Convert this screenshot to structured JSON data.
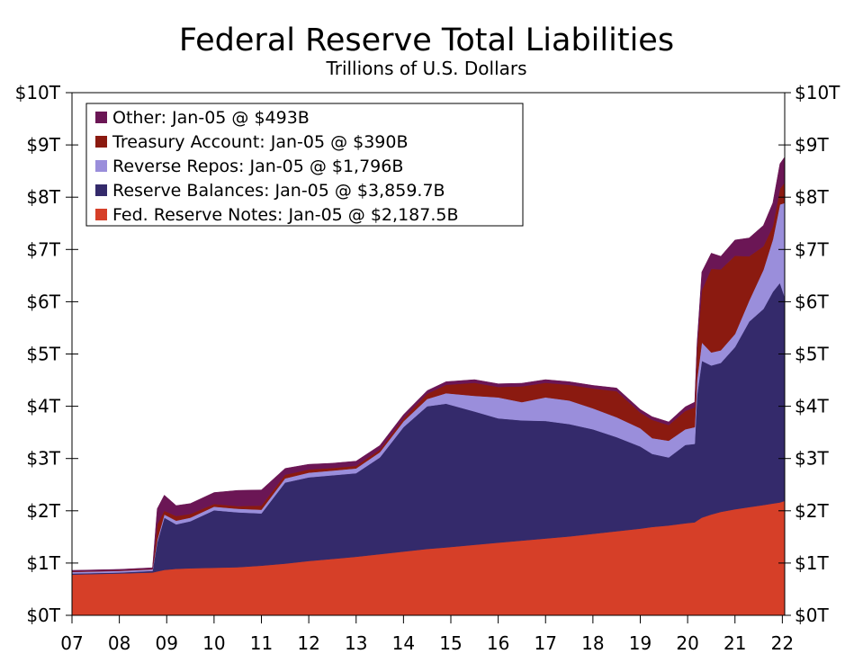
{
  "chart_data": {
    "type": "area",
    "title": "Federal Reserve Total Liabilities",
    "subtitle": "Trillions of U.S. Dollars",
    "xlabel": "",
    "ylabel": "",
    "xlim": [
      2007.0,
      2022.05
    ],
    "ylim": [
      0,
      10
    ],
    "x_ticks": [
      {
        "value": 2007,
        "label": "07"
      },
      {
        "value": 2008,
        "label": "08"
      },
      {
        "value": 2009,
        "label": "09"
      },
      {
        "value": 2010,
        "label": "10"
      },
      {
        "value": 2011,
        "label": "11"
      },
      {
        "value": 2012,
        "label": "12"
      },
      {
        "value": 2013,
        "label": "13"
      },
      {
        "value": 2014,
        "label": "14"
      },
      {
        "value": 2015,
        "label": "15"
      },
      {
        "value": 2016,
        "label": "16"
      },
      {
        "value": 2017,
        "label": "17"
      },
      {
        "value": 2018,
        "label": "18"
      },
      {
        "value": 2019,
        "label": "19"
      },
      {
        "value": 2020,
        "label": "20"
      },
      {
        "value": 2021,
        "label": "21"
      },
      {
        "value": 2022,
        "label": "22"
      }
    ],
    "y_ticks": [
      {
        "value": 0,
        "label": "$0T"
      },
      {
        "value": 1,
        "label": "$1T"
      },
      {
        "value": 2,
        "label": "$2T"
      },
      {
        "value": 3,
        "label": "$3T"
      },
      {
        "value": 4,
        "label": "$4T"
      },
      {
        "value": 5,
        "label": "$5T"
      },
      {
        "value": 6,
        "label": "$6T"
      },
      {
        "value": 7,
        "label": "$7T"
      },
      {
        "value": 8,
        "label": "$8T"
      },
      {
        "value": 9,
        "label": "$9T"
      },
      {
        "value": 10,
        "label": "$10T"
      }
    ],
    "legend_position": "top-left",
    "x": [
      2007.0,
      2008.0,
      2008.7,
      2008.8,
      2008.95,
      2009.2,
      2009.5,
      2010.0,
      2010.5,
      2011.0,
      2011.5,
      2012.0,
      2012.5,
      2013.0,
      2013.5,
      2014.0,
      2014.5,
      2014.9,
      2015.5,
      2016.0,
      2016.5,
      2017.0,
      2017.5,
      2018.0,
      2018.5,
      2019.0,
      2019.25,
      2019.6,
      2019.95,
      2020.15,
      2020.2,
      2020.3,
      2020.5,
      2020.7,
      2021.0,
      2021.3,
      2021.6,
      2021.8,
      2021.95,
      2022.05
    ],
    "series": [
      {
        "name": "Fed. Reserve Notes",
        "legend": "Fed. Reserve Notes: Jan-05 @ $2,187.5B",
        "color": "#D63F28",
        "values": [
          0.78,
          0.8,
          0.82,
          0.84,
          0.87,
          0.89,
          0.9,
          0.91,
          0.92,
          0.95,
          0.99,
          1.04,
          1.08,
          1.12,
          1.17,
          1.22,
          1.27,
          1.3,
          1.35,
          1.39,
          1.43,
          1.47,
          1.51,
          1.56,
          1.61,
          1.66,
          1.69,
          1.72,
          1.76,
          1.78,
          1.81,
          1.87,
          1.93,
          1.98,
          2.03,
          2.07,
          2.11,
          2.14,
          2.16,
          2.19
        ]
      },
      {
        "name": "Reserve Balances",
        "legend": "Reserve Balances: Jan-05 @ $3,859.7B",
        "color": "#342A6B",
        "values": [
          0.02,
          0.02,
          0.03,
          0.55,
          1.0,
          0.85,
          0.9,
          1.1,
          1.05,
          1.0,
          1.55,
          1.6,
          1.6,
          1.6,
          1.85,
          2.38,
          2.73,
          2.75,
          2.55,
          2.38,
          2.3,
          2.25,
          2.15,
          2.0,
          1.8,
          1.57,
          1.4,
          1.3,
          1.5,
          1.5,
          2.4,
          3.0,
          2.85,
          2.85,
          3.1,
          3.55,
          3.75,
          4.05,
          4.2,
          3.9
        ]
      },
      {
        "name": "Reverse Repos",
        "legend": "Reverse Repos: Jan-05 @ $1,796B",
        "color": "#9A8EDB",
        "values": [
          0.03,
          0.03,
          0.03,
          0.05,
          0.06,
          0.07,
          0.07,
          0.07,
          0.07,
          0.07,
          0.08,
          0.09,
          0.09,
          0.09,
          0.1,
          0.11,
          0.14,
          0.2,
          0.3,
          0.4,
          0.35,
          0.45,
          0.45,
          0.4,
          0.38,
          0.35,
          0.3,
          0.32,
          0.3,
          0.32,
          0.3,
          0.35,
          0.25,
          0.24,
          0.25,
          0.4,
          0.75,
          1.0,
          1.5,
          1.8
        ]
      },
      {
        "name": "Treasury Account",
        "legend": "Treasury Account: Jan-05 @ $390B",
        "color": "#8B1A10",
        "values": [
          0.01,
          0.01,
          0.01,
          0.3,
          0.07,
          0.09,
          0.07,
          0.05,
          0.05,
          0.08,
          0.07,
          0.06,
          0.05,
          0.05,
          0.05,
          0.06,
          0.1,
          0.16,
          0.25,
          0.2,
          0.3,
          0.28,
          0.3,
          0.38,
          0.5,
          0.3,
          0.35,
          0.3,
          0.35,
          0.38,
          0.6,
          1.0,
          1.6,
          1.55,
          1.5,
          0.85,
          0.45,
          0.25,
          0.3,
          0.39
        ]
      },
      {
        "name": "Other",
        "legend": "Other: Jan-05 @ $493B",
        "color": "#6B1655",
        "values": [
          0.02,
          0.02,
          0.02,
          0.3,
          0.3,
          0.2,
          0.2,
          0.22,
          0.3,
          0.3,
          0.12,
          0.1,
          0.09,
          0.09,
          0.08,
          0.07,
          0.06,
          0.06,
          0.06,
          0.06,
          0.06,
          0.06,
          0.06,
          0.06,
          0.06,
          0.06,
          0.06,
          0.06,
          0.08,
          0.1,
          0.1,
          0.35,
          0.3,
          0.25,
          0.3,
          0.35,
          0.4,
          0.45,
          0.48,
          0.49
        ]
      }
    ]
  }
}
